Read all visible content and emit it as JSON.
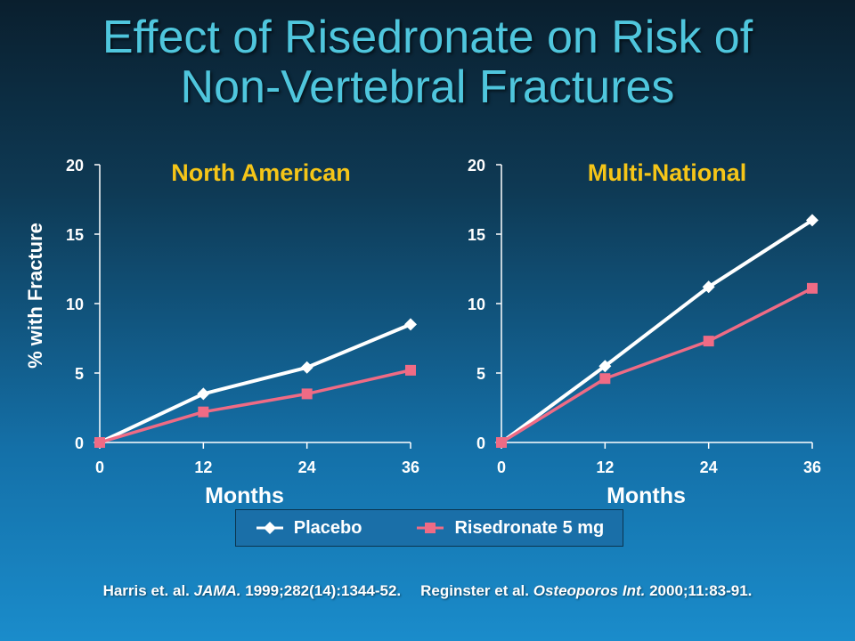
{
  "slide": {
    "title_line1": "Effect of Risedronate on Risk of",
    "title_line2": "Non-Vertebral Fractures",
    "ylabel": "% with Fracture"
  },
  "colors": {
    "title": "#4fc6dd",
    "panel_title": "#f5c518",
    "placebo": "#ffffff",
    "risedronate": "#ef6b85",
    "axis": "#ffffff"
  },
  "legend": {
    "placebo_label": "Placebo",
    "risedronate_label": "Risedronate 5 mg",
    "placebo_icon": "diamond-icon",
    "risedronate_icon": "square-icon"
  },
  "citation": {
    "ref1_authors": "Harris et. al. ",
    "ref1_journal": "JAMA.",
    "ref1_details": " 1999;282(14):1344-52.",
    "ref2_authors": "Reginster  et al. ",
    "ref2_journal": "Osteoporos Int.",
    "ref2_details": " 2000;11:83-91."
  },
  "chart_data": [
    {
      "type": "line",
      "title": "North American",
      "xlabel": "Months",
      "ylabel": "% with Fracture",
      "x": [
        0,
        12,
        24,
        36
      ],
      "xlim": [
        0,
        36
      ],
      "ylim": [
        0,
        20
      ],
      "yticks": [
        0,
        5,
        10,
        15,
        20
      ],
      "series": [
        {
          "name": "Placebo",
          "values": [
            0,
            3.5,
            5.4,
            8.5
          ]
        },
        {
          "name": "Risedronate 5 mg",
          "values": [
            0,
            2.2,
            3.5,
            5.2
          ]
        }
      ]
    },
    {
      "type": "line",
      "title": "Multi-National",
      "xlabel": "Months",
      "x": [
        0,
        12,
        24,
        36
      ],
      "xlim": [
        0,
        36
      ],
      "ylim": [
        0,
        20
      ],
      "yticks": [
        0,
        5,
        10,
        15,
        20
      ],
      "series": [
        {
          "name": "Placebo",
          "values": [
            0,
            5.5,
            11.2,
            16
          ]
        },
        {
          "name": "Risedronate 5 mg",
          "values": [
            0,
            4.6,
            7.3,
            11.1
          ]
        }
      ]
    }
  ]
}
